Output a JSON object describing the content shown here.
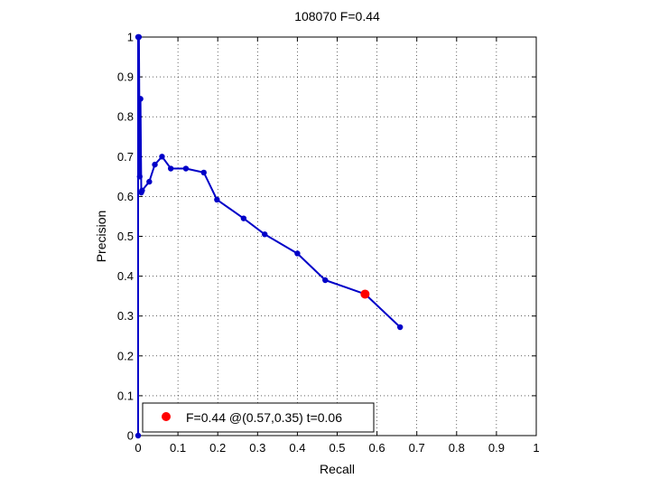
{
  "chart_data": {
    "type": "line",
    "title": "108070 F=0.44",
    "xlabel": "Recall",
    "ylabel": "Precision",
    "xlim": [
      0,
      1
    ],
    "ylim": [
      0,
      1
    ],
    "xticks": [
      "0",
      "0.1",
      "0.2",
      "0.3",
      "0.4",
      "0.5",
      "0.6",
      "0.7",
      "0.8",
      "0.9",
      "1"
    ],
    "yticks": [
      "0",
      "0.1",
      "0.2",
      "0.3",
      "0.4",
      "0.5",
      "0.6",
      "0.7",
      "0.8",
      "0.9",
      "1"
    ],
    "grid": "dotted",
    "series": [
      {
        "color": "#0000c8",
        "x": [
          0.0,
          0.0,
          0.002,
          0.004,
          0.006,
          0.008,
          0.01,
          0.028,
          0.042,
          0.06,
          0.082,
          0.12,
          0.165,
          0.198,
          0.265,
          0.318,
          0.4,
          0.47,
          0.57,
          0.658
        ],
        "y": [
          0.0,
          1.0,
          1.0,
          0.65,
          0.845,
          0.61,
          0.615,
          0.637,
          0.68,
          0.7,
          0.67,
          0.67,
          0.66,
          0.592,
          0.545,
          0.505,
          0.457,
          0.39,
          0.355,
          0.272
        ]
      }
    ],
    "highlight": {
      "x": 0.57,
      "y": 0.355,
      "color": "#ff0000"
    },
    "legend": {
      "label": "F=0.44 @(0.57,0.35) t=0.06",
      "position": "bottom-left"
    }
  }
}
